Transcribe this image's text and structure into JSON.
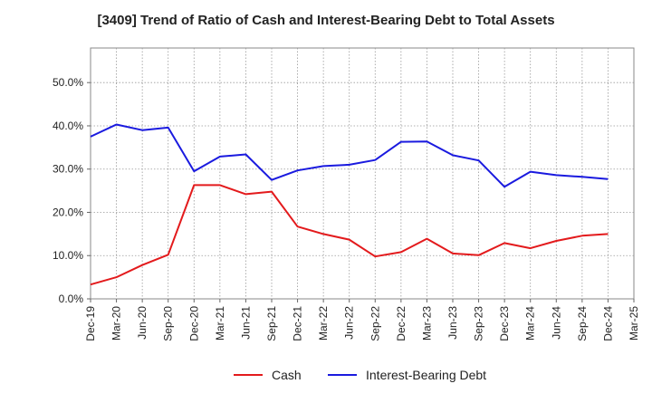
{
  "chart_data": {
    "type": "line",
    "title": "[3409]  Trend of Ratio of Cash and Interest-Bearing Debt to Total Assets",
    "xlabel": "",
    "ylabel": "",
    "x_ticks": [
      "Dec-19",
      "Mar-20",
      "Jun-20",
      "Sep-20",
      "Dec-20",
      "Mar-21",
      "Jun-21",
      "Sep-21",
      "Dec-21",
      "Mar-22",
      "Jun-22",
      "Sep-22",
      "Dec-22",
      "Mar-23",
      "Jun-23",
      "Sep-23",
      "Dec-23",
      "Mar-24",
      "Jun-24",
      "Sep-24",
      "Dec-24",
      "Mar-25"
    ],
    "y_ticks": [
      "0.0%",
      "10.0%",
      "20.0%",
      "30.0%",
      "40.0%",
      "50.0%"
    ],
    "ylim": [
      0,
      58
    ],
    "grid": true,
    "legend_position": "bottom",
    "categories": [
      "Dec-19",
      "Mar-20",
      "Jun-20",
      "Sep-20",
      "Dec-20",
      "Mar-21",
      "Jun-21",
      "Sep-21",
      "Dec-21",
      "Mar-22",
      "Jun-22",
      "Sep-22",
      "Dec-22",
      "Mar-23",
      "Jun-23",
      "Sep-23",
      "Dec-23",
      "Mar-24",
      "Jun-24",
      "Sep-24",
      "Dec-24"
    ],
    "series": [
      {
        "name": "Cash",
        "color": "#e31a1c",
        "values": [
          3.3,
          5.0,
          7.8,
          10.2,
          26.3,
          26.3,
          24.2,
          24.8,
          16.7,
          15.0,
          13.7,
          9.8,
          10.8,
          13.9,
          10.5,
          10.1,
          12.9,
          11.7,
          13.4,
          14.6,
          15.0
        ]
      },
      {
        "name": "Interest-Bearing Debt",
        "color": "#1a1adf",
        "values": [
          37.5,
          40.3,
          39.0,
          39.6,
          29.5,
          32.9,
          33.4,
          27.5,
          29.7,
          30.7,
          31.0,
          32.1,
          36.3,
          36.4,
          33.2,
          32.0,
          25.9,
          29.4,
          28.6,
          28.2,
          27.7
        ]
      }
    ]
  }
}
